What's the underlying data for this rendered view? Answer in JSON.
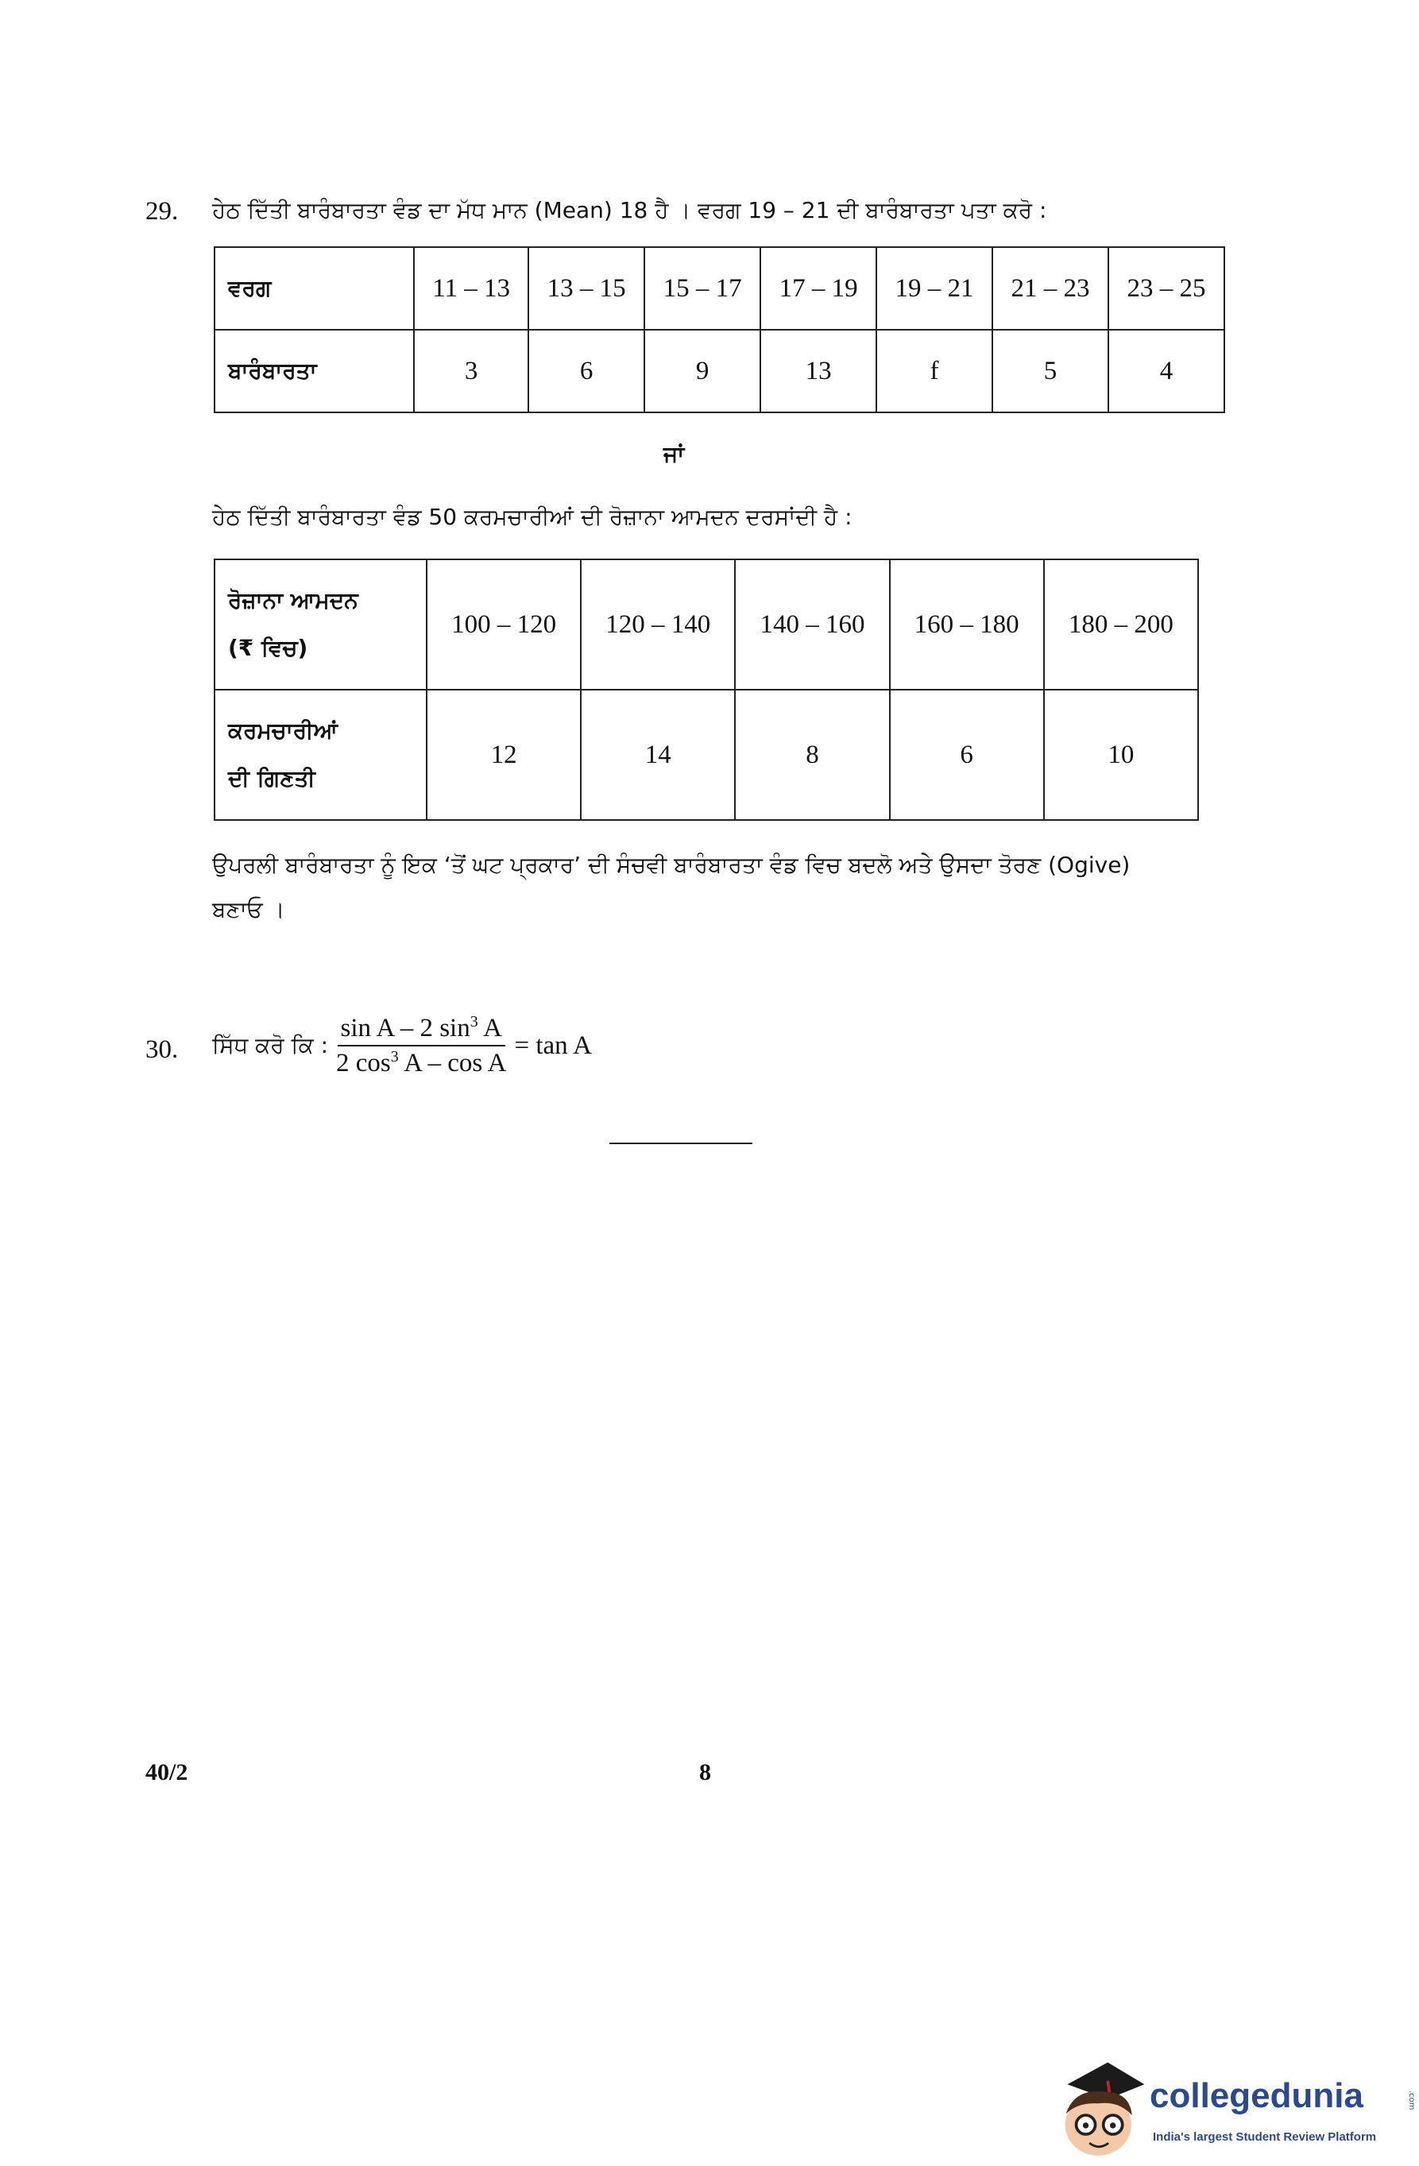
{
  "q29": {
    "number": "29.",
    "text": "ਹੇਠ ਦਿੱਤੀ ਬਾਰੰਬਾਰਤਾ ਵੰਡ ਦਾ ਮੱਧ ਮਾਨ (Mean) 18 ਹੈ । ਵਰਗ 19 – 21 ਦੀ ਬਾਰੰਬਾਰਤਾ ਪਤਾ ਕਰੋ :",
    "table1": {
      "row_headers": [
        "ਵਰਗ",
        "ਬਾਰੰਬਾਰਤਾ"
      ],
      "classes": [
        "11 – 13",
        "13 – 15",
        "15 – 17",
        "17 – 19",
        "19 – 21",
        "21 – 23",
        "23 – 25"
      ],
      "frequencies": [
        "3",
        "6",
        "9",
        "13",
        "f",
        "5",
        "4"
      ]
    },
    "or": "ਜਾਂ",
    "text2": "ਹੇਠ ਦਿੱਤੀ ਬਾਰੰਬਾਰਤਾ ਵੰਡ 50 ਕਰਮਚਾਰੀਆਂ ਦੀ ਰੋਜ਼ਾਨਾ ਆਮਦਨ ਦਰਸਾਂਦੀ ਹੈ :",
    "table2": {
      "row1_header_line1": "ਰੋਜ਼ਾਨਾ ਆਮਦਨ",
      "row1_header_line2": "(₹ ਵਿਚ)",
      "row2_header_line1": "ਕਰਮਚਾਰੀਆਂ",
      "row2_header_line2": "ਦੀ ਗਿਣਤੀ",
      "incomes": [
        "100 – 120",
        "120 – 140",
        "140 – 160",
        "160 – 180",
        "180 – 200"
      ],
      "counts": [
        "12",
        "14",
        "8",
        "6",
        "10"
      ]
    },
    "text3_line1": "ਉਪਰਲੀ ਬਾਰੰਬਾਰਤਾ ਨੂੰ ਇਕ ‘ਤੋਂ ਘਟ ਪ੍ਰਕਾਰ’ ਦੀ ਸੰਚਵੀ ਬਾਰੰਬਾਰਤਾ ਵੰਡ ਵਿਚ ਬਦਲੋ ਅਤੇ ਉਸਦਾ ਤੋਰਣ (Ogive)",
    "text3_line2": "ਬਣਾਓ ।"
  },
  "q30": {
    "number": "30.",
    "prefix": "ਸਿੱਧ ਕਰੋ ਕਿ :",
    "num_a": "sin A – 2 sin",
    "num_exp": "3",
    "num_b": " A",
    "den_a": "2 cos",
    "den_exp": "3",
    "den_b": " A – cos A",
    "rhs": "= tan A"
  },
  "footer": {
    "code": "40/2",
    "page": "8"
  },
  "logo": {
    "brand": "collegedunia",
    "tagline": "India's largest Student Review Platform",
    "suffix": ".com",
    "brand_color": "#2b4a8b"
  }
}
